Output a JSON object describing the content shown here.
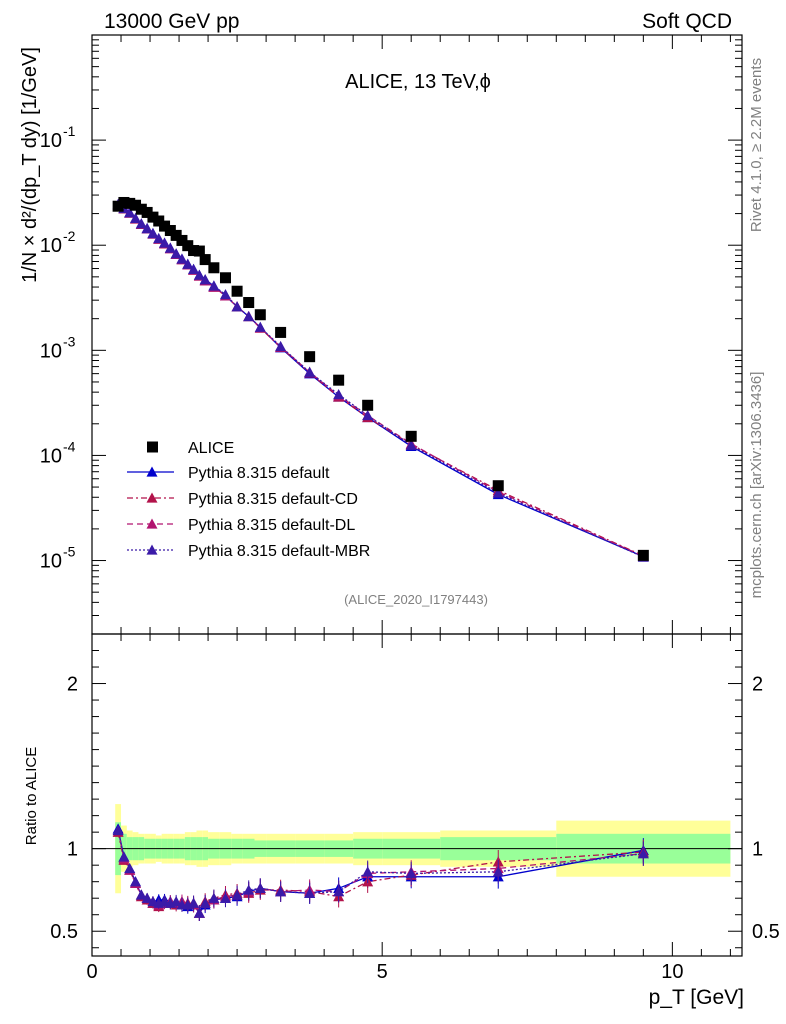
{
  "header": {
    "left": "13000 GeV pp",
    "right": "Soft QCD"
  },
  "side": {
    "rivet": "Rivet 4.1.0, ≥ 2.2M events",
    "mcplots": "mcplots.cern.ch [arXiv:1306.3436]"
  },
  "colors": {
    "data": "#000000",
    "default": "#0000cc",
    "cd": "#b2124a",
    "dl": "#b21470",
    "mbr": "#3a1aa8",
    "band_inner": "#99ff99",
    "band_outer": "#ffff99"
  },
  "chart_data": {
    "type": "scatter",
    "title": "ALICE, 13 TeV,ϕ",
    "analysis_id": "(ALICE_2020_I1797443)",
    "xlabel": "p_T [GeV]",
    "ylabel": "1/N × d²/(dp_T dy) [1/GeV]",
    "ratio_ylabel": "Ratio to ALICE",
    "xlim": [
      0,
      11.2
    ],
    "ylim": [
      2e-06,
      1
    ],
    "ratio_ylim": [
      0.35,
      2.3
    ],
    "x_ticks": [
      "0",
      "5",
      "10"
    ],
    "y_ticks": [
      [
        "-5",
        "1e-5"
      ],
      [
        "-4",
        "1e-4"
      ],
      [
        "-3",
        "1e-3"
      ],
      [
        "-2",
        "1e-2"
      ],
      [
        "-1",
        "1e-1"
      ]
    ],
    "ratio_ticks": [
      "0.5",
      "1",
      "2"
    ],
    "legend": [
      "ALICE",
      "Pythia 8.315 default",
      "Pythia 8.315 default-CD",
      "Pythia 8.315 default-DL",
      "Pythia 8.315 default-MBR"
    ],
    "x": [
      0.45,
      0.55,
      0.65,
      0.75,
      0.85,
      0.95,
      1.05,
      1.15,
      1.25,
      1.35,
      1.45,
      1.55,
      1.65,
      1.75,
      1.85,
      1.95,
      2.1,
      2.3,
      2.5,
      2.7,
      2.9,
      3.25,
      3.75,
      4.25,
      4.75,
      5.5,
      7.0,
      9.5
    ],
    "data": [
      0.0235,
      0.0255,
      0.025,
      0.024,
      0.022,
      0.0205,
      0.0185,
      0.017,
      0.0152,
      0.0138,
      0.0124,
      0.0111,
      0.0099,
      0.0089,
      0.0088,
      0.0073,
      0.0061,
      0.0049,
      0.00365,
      0.00285,
      0.00218,
      0.00148,
      0.00087,
      0.00052,
      0.0003,
      0.000152,
      5.15e-05,
      1.12e-05
    ],
    "series": [
      {
        "name": "Pythia 8.315 default",
        "values": [
          0.0245,
          0.0225,
          0.0205,
          0.018,
          0.016,
          0.0145,
          0.013,
          0.0116,
          0.0105,
          0.0094,
          0.0083,
          0.0074,
          0.0066,
          0.0059,
          0.0052,
          0.0047,
          0.0041,
          0.0033,
          0.0026,
          0.0021,
          0.00165,
          0.00106,
          0.0006,
          0.00036,
          0.00023,
          0.000122,
          4.25e-05,
          1.09e-05
        ],
        "ratio": [
          1.12,
          0.95,
          0.88,
          0.8,
          0.72,
          0.7,
          0.67,
          0.69,
          0.69,
          0.68,
          0.67,
          0.67,
          0.65,
          0.66,
          0.61,
          0.66,
          0.69,
          0.7,
          0.71,
          0.74,
          0.76,
          0.74,
          0.73,
          0.76,
          0.83,
          0.83,
          0.83,
          0.99
        ]
      },
      {
        "name": "Pythia 8.315 default-CD",
        "values": [
          0.0242,
          0.0222,
          0.0202,
          0.0178,
          0.0158,
          0.0143,
          0.0128,
          0.0114,
          0.0103,
          0.0093,
          0.0082,
          0.0073,
          0.0065,
          0.0058,
          0.0051,
          0.0046,
          0.004,
          0.0033,
          0.0026,
          0.0021,
          0.00163,
          0.00107,
          0.00061,
          0.00036,
          0.00023,
          0.000127,
          4.65e-05,
          1.11e-05
        ],
        "ratio": [
          1.1,
          0.93,
          0.87,
          0.79,
          0.71,
          0.69,
          0.67,
          0.65,
          0.68,
          0.67,
          0.66,
          0.66,
          0.67,
          0.67,
          0.61,
          0.68,
          0.7,
          0.72,
          0.73,
          0.73,
          0.75,
          0.75,
          0.74,
          0.71,
          0.8,
          0.84,
          0.92,
          0.98
        ]
      },
      {
        "name": "Pythia 8.315 default-DL",
        "values": [
          0.0243,
          0.0223,
          0.0203,
          0.0179,
          0.0159,
          0.0143,
          0.0128,
          0.0115,
          0.0104,
          0.0093,
          0.0082,
          0.0073,
          0.0065,
          0.0058,
          0.0051,
          0.0046,
          0.004,
          0.0033,
          0.0026,
          0.0021,
          0.00164,
          0.00108,
          0.00062,
          0.00037,
          0.00024,
          0.000129,
          4.5e-05,
          1.1e-05
        ],
        "ratio": [
          1.11,
          0.94,
          0.87,
          0.79,
          0.72,
          0.7,
          0.68,
          0.66,
          0.67,
          0.68,
          0.67,
          0.68,
          0.66,
          0.66,
          0.61,
          0.67,
          0.69,
          0.71,
          0.72,
          0.74,
          0.76,
          0.74,
          0.75,
          0.74,
          0.85,
          0.86,
          0.88,
          0.97
        ]
      },
      {
        "name": "Pythia 8.315 default-MBR",
        "values": [
          0.0244,
          0.0224,
          0.0204,
          0.018,
          0.016,
          0.0144,
          0.0129,
          0.0116,
          0.0105,
          0.0094,
          0.0083,
          0.0074,
          0.0066,
          0.0059,
          0.0052,
          0.0047,
          0.0041,
          0.0034,
          0.0026,
          0.0021,
          0.00166,
          0.00109,
          0.00062,
          0.00038,
          0.00024,
          0.000125,
          4.4e-05,
          1.08e-05
        ],
        "ratio": [
          1.11,
          0.95,
          0.88,
          0.8,
          0.72,
          0.7,
          0.68,
          0.67,
          0.68,
          0.67,
          0.68,
          0.66,
          0.66,
          0.67,
          0.61,
          0.67,
          0.7,
          0.7,
          0.72,
          0.75,
          0.76,
          0.74,
          0.73,
          0.74,
          0.86,
          0.85,
          0.86,
          0.97
        ]
      }
    ],
    "band_edges": [
      0.4,
      0.5,
      0.6,
      0.7,
      0.8,
      0.9,
      1.0,
      1.1,
      1.2,
      1.3,
      1.4,
      1.5,
      1.6,
      1.7,
      1.8,
      1.9,
      2.0,
      2.2,
      2.4,
      2.6,
      2.8,
      3.0,
      3.5,
      4.0,
      4.5,
      5.0,
      6.0,
      8.0,
      11.0
    ],
    "band_inner": [
      0.16,
      0.09,
      0.07,
      0.07,
      0.07,
      0.06,
      0.06,
      0.06,
      0.06,
      0.06,
      0.06,
      0.06,
      0.07,
      0.07,
      0.07,
      0.07,
      0.06,
      0.06,
      0.06,
      0.06,
      0.05,
      0.05,
      0.05,
      0.05,
      0.06,
      0.06,
      0.07,
      0.09
    ],
    "band_outer": [
      0.27,
      0.14,
      0.11,
      0.1,
      0.09,
      0.09,
      0.09,
      0.08,
      0.09,
      0.09,
      0.09,
      0.09,
      0.1,
      0.1,
      0.11,
      0.11,
      0.1,
      0.1,
      0.09,
      0.09,
      0.09,
      0.09,
      0.09,
      0.09,
      0.1,
      0.1,
      0.11,
      0.17
    ]
  }
}
